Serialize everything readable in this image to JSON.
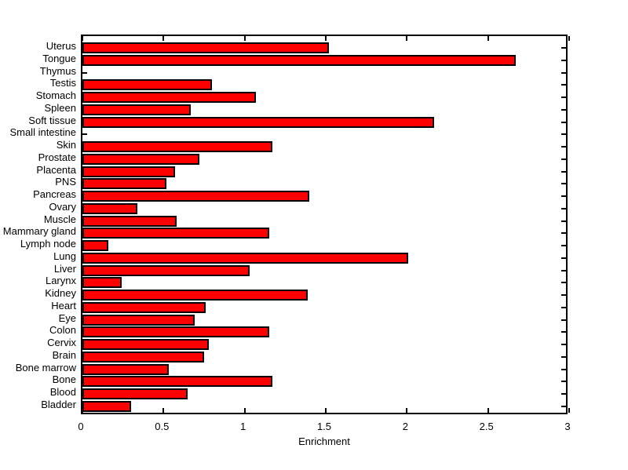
{
  "chart_data": {
    "type": "bar",
    "orientation": "horizontal",
    "title": "",
    "xlabel": "Enrichment",
    "ylabel": "",
    "xlim": [
      0,
      3
    ],
    "xticks": [
      0,
      0.5,
      1,
      1.5,
      2,
      2.5,
      3
    ],
    "xtick_labels": [
      "0",
      "0.5",
      "1",
      "1.5",
      "2",
      "2.5",
      "3"
    ],
    "grid": false,
    "legend": false,
    "bar_color": "#FF0000",
    "bar_edge_color": "#000000",
    "background_color": "#FFFFFF",
    "categories": [
      "Uterus",
      "Tongue",
      "Thymus",
      "Testis",
      "Stomach",
      "Spleen",
      "Soft tissue",
      "Small intestine",
      "Skin",
      "Prostate",
      "Placenta",
      "PNS",
      "Pancreas",
      "Ovary",
      "Muscle",
      "Mammary gland",
      "Lymph node",
      "Lung",
      "Liver",
      "Larynx",
      "Kidney",
      "Heart",
      "Eye",
      "Colon",
      "Cervix",
      "Brain",
      "Bone marrow",
      "Bone",
      "Blood",
      "Bladder"
    ],
    "values": [
      1.52,
      2.67,
      0,
      0.8,
      1.07,
      0.67,
      2.17,
      0,
      1.17,
      0.72,
      0.57,
      0.52,
      1.4,
      0.34,
      0.58,
      1.15,
      0.16,
      2.01,
      1.03,
      0.24,
      1.39,
      0.76,
      0.69,
      1.15,
      0.78,
      0.75,
      0.53,
      1.17,
      0.65,
      0.3
    ]
  }
}
